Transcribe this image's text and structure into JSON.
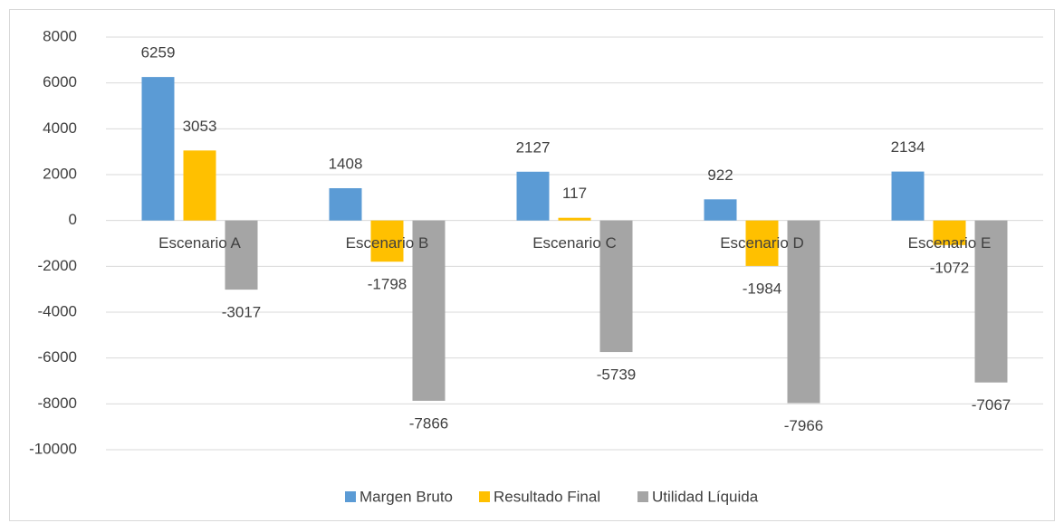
{
  "chart_data": {
    "type": "bar",
    "categories": [
      "Escenario A",
      "Escenario B",
      "Escenario C",
      "Escenario D",
      "Escenario E"
    ],
    "series": [
      {
        "name": "Margen Bruto",
        "color": "#5b9bd5",
        "values": [
          6259,
          1408,
          2127,
          922,
          2134
        ]
      },
      {
        "name": "Resultado Final",
        "color": "#ffc000",
        "values": [
          3053,
          -1798,
          117,
          -1984,
          -1072
        ]
      },
      {
        "name": "Utilidad Líquida",
        "color": "#a5a5a5",
        "values": [
          -3017,
          -7866,
          -5739,
          -7966,
          -7067
        ]
      }
    ],
    "ylim": [
      -10000,
      8000
    ],
    "yticks": [
      -10000,
      -8000,
      -6000,
      -4000,
      -2000,
      0,
      2000,
      4000,
      6000,
      8000
    ],
    "grid": true,
    "legend": "bottom"
  }
}
